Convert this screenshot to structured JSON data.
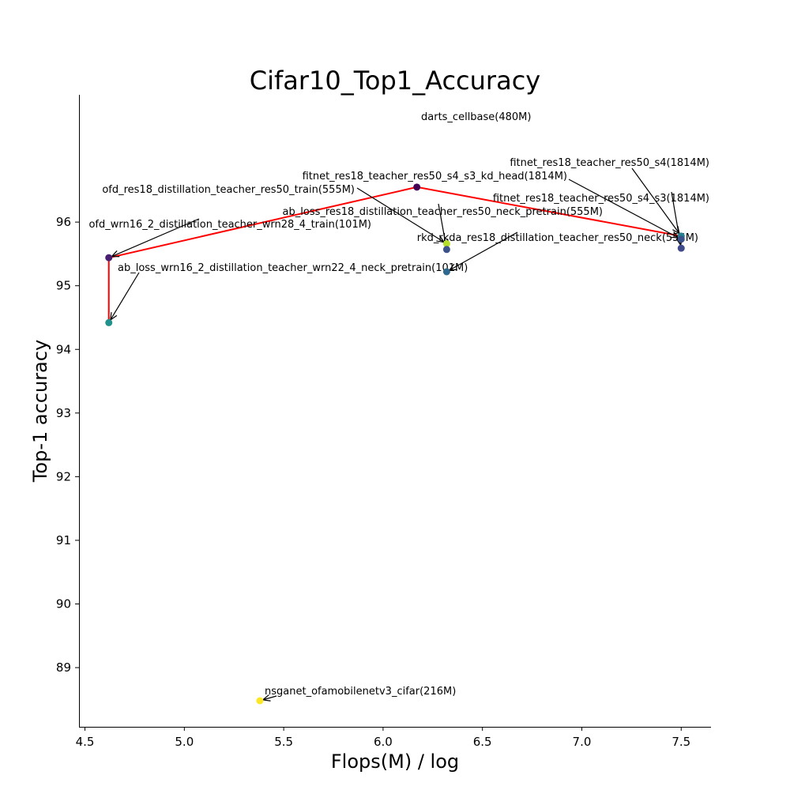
{
  "chart_data": {
    "type": "scatter",
    "title": "Cifar10_Top1_Accuracy",
    "xlabel": "Flops(M) / log",
    "ylabel": "Top-1 accuracy",
    "xlim": [
      4.47,
      7.65
    ],
    "ylim": [
      88.07,
      98.0
    ],
    "xticks": [
      "4.5",
      "5.0",
      "5.5",
      "6.0",
      "6.5",
      "7.0",
      "7.5"
    ],
    "yticks": [
      "89",
      "90",
      "91",
      "92",
      "93",
      "94",
      "95",
      "96"
    ],
    "grid": false,
    "legend": "none",
    "points": [
      {
        "label": "darts_cellbase(480M)",
        "x": 6.17,
        "y": 96.55,
        "color": "#440154"
      },
      {
        "label": "fitnet_res18_teacher_res50_s4(1814M)",
        "x": 7.5,
        "y": 95.78,
        "color": "#26828e"
      },
      {
        "label": "fitnet_res18_teacher_res50_s4_s3_kd_head(1814M)",
        "x": 7.5,
        "y": 95.73,
        "color": "#3b528b"
      },
      {
        "label": "fitnet_res18_teacher_res50_s4_s3(1814M)",
        "x": 7.5,
        "y": 95.59,
        "color": "#3e4a89"
      },
      {
        "label": "ofd_res18_distillation_teacher_res50_train(555M)",
        "x": 6.32,
        "y": 95.66,
        "color": "#b5de2b"
      },
      {
        "label": "ab_loss_res18_distillation_teacher_res50_neck_pretrain(555M)",
        "x": 6.32,
        "y": 95.57,
        "color": "#3b528b"
      },
      {
        "label": "rkd_rkda_res18_distillation_teacher_res50_neck(555M)",
        "x": 6.32,
        "y": 95.22,
        "color": "#31688e"
      },
      {
        "label": "ofd_wrn16_2_distillation_teacher_wrn28_4_train(101M)",
        "x": 4.62,
        "y": 95.44,
        "color": "#481f70"
      },
      {
        "label": "ab_loss_wrn16_2_distillation_teacher_wrn22_4_neck_pretrain(101M)",
        "x": 4.62,
        "y": 94.42,
        "color": "#21918c"
      },
      {
        "label": "nsganet_ofamobilenetv3_cifar(216M)",
        "x": 5.38,
        "y": 88.48,
        "color": "#fde725"
      }
    ],
    "pareto_front": {
      "color": "#ff0000",
      "x": [
        4.62,
        4.62,
        6.17,
        7.5
      ],
      "y": [
        94.42,
        95.44,
        96.55,
        95.78
      ]
    }
  }
}
